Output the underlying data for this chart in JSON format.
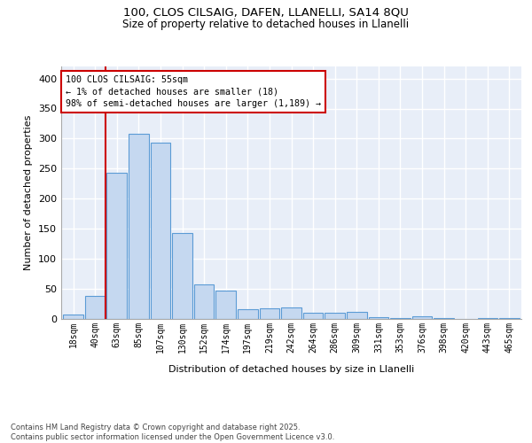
{
  "title1": "100, CLOS CILSAIG, DAFEN, LLANELLI, SA14 8QU",
  "title2": "Size of property relative to detached houses in Llanelli",
  "xlabel": "Distribution of detached houses by size in Llanelli",
  "ylabel": "Number of detached properties",
  "categories": [
    "18sqm",
    "40sqm",
    "63sqm",
    "85sqm",
    "107sqm",
    "130sqm",
    "152sqm",
    "174sqm",
    "197sqm",
    "219sqm",
    "242sqm",
    "264sqm",
    "286sqm",
    "309sqm",
    "331sqm",
    "353sqm",
    "376sqm",
    "398sqm",
    "420sqm",
    "443sqm",
    "465sqm"
  ],
  "values": [
    8,
    38,
    243,
    308,
    294,
    143,
    57,
    47,
    16,
    18,
    19,
    10,
    11,
    12,
    3,
    2,
    5,
    1,
    0,
    1,
    2
  ],
  "bar_color": "#c5d8f0",
  "bar_edge_color": "#5b9bd5",
  "background_color": "#e8eef8",
  "grid_color": "#ffffff",
  "vline_color": "#cc0000",
  "vline_x_index": 1.5,
  "annotation_text": "100 CLOS CILSAIG: 55sqm\n← 1% of detached houses are smaller (18)\n98% of semi-detached houses are larger (1,189) →",
  "footer": "Contains HM Land Registry data © Crown copyright and database right 2025.\nContains public sector information licensed under the Open Government Licence v3.0.",
  "ylim": [
    0,
    420
  ],
  "yticks": [
    0,
    50,
    100,
    150,
    200,
    250,
    300,
    350,
    400
  ]
}
